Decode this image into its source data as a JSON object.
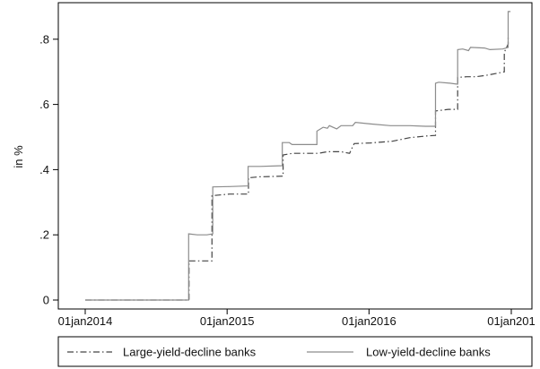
{
  "chart_data": {
    "type": "line",
    "title": "",
    "xlabel": "",
    "ylabel": "in %",
    "x_range": [
      "2014-01-01",
      "2017-01-01"
    ],
    "ylim": [
      0,
      0.88
    ],
    "x_ticks": [
      {
        "date": "2014-01-01",
        "label": "01jan2014"
      },
      {
        "date": "2015-01-01",
        "label": "01jan2015"
      },
      {
        "date": "2016-01-01",
        "label": "01jan2016"
      },
      {
        "date": "2017-01-01",
        "label": "01jan201"
      }
    ],
    "y_ticks": [
      {
        "value": 0,
        "label": "0"
      },
      {
        "value": 0.2,
        "label": ".2"
      },
      {
        "value": 0.4,
        "label": ".4"
      },
      {
        "value": 0.6,
        "label": ".6"
      },
      {
        "value": 0.8,
        "label": ".8"
      }
    ],
    "grid": false,
    "legend_position": "bottom",
    "series": [
      {
        "name": "Large-yield-decline banks",
        "style": "dash-dot",
        "color": "#444444",
        "points": [
          [
            "2014-01-01",
            0
          ],
          [
            "2014-09-25",
            0
          ],
          [
            "2014-09-25",
            0.12
          ],
          [
            "2014-10-27",
            0.12
          ],
          [
            "2014-10-27",
            0.12
          ],
          [
            "2014-11-23",
            0.12
          ],
          [
            "2014-11-23",
            0.32
          ],
          [
            "2015-01-07",
            0.325
          ],
          [
            "2015-02-25",
            0.325
          ],
          [
            "2015-02-25",
            0.375
          ],
          [
            "2015-03-26",
            0.378
          ],
          [
            "2015-05-25",
            0.38
          ],
          [
            "2015-05-25",
            0.445
          ],
          [
            "2015-06-19",
            0.45
          ],
          [
            "2015-08-24",
            0.45
          ],
          [
            "2015-09-16",
            0.455
          ],
          [
            "2015-10-21",
            0.455
          ],
          [
            "2015-11-12",
            0.45
          ],
          [
            "2015-11-24",
            0.48
          ],
          [
            "2016-01-05",
            0.482
          ],
          [
            "2016-03-01",
            0.487
          ],
          [
            "2016-04-15",
            0.498
          ],
          [
            "2016-05-26",
            0.503
          ],
          [
            "2016-06-20",
            0.505
          ],
          [
            "2016-06-20",
            0.58
          ],
          [
            "2016-07-23",
            0.585
          ],
          [
            "2016-08-16",
            0.585
          ],
          [
            "2016-08-16",
            0.683
          ],
          [
            "2016-09-08",
            0.685
          ],
          [
            "2016-10-02",
            0.685
          ],
          [
            "2016-11-02",
            0.69
          ],
          [
            "2016-12-14",
            0.7
          ],
          [
            "2016-12-14",
            0.76
          ],
          [
            "2016-12-24",
            0.785
          ],
          [
            "2016-12-24",
            0.81
          ]
        ]
      },
      {
        "name": "Low-yield-decline banks",
        "style": "solid",
        "color": "#8c8c8c",
        "points": [
          [
            "2014-01-01",
            0
          ],
          [
            "2014-09-24",
            0
          ],
          [
            "2014-09-24",
            0.203
          ],
          [
            "2014-10-16",
            0.2
          ],
          [
            "2014-11-10",
            0.2
          ],
          [
            "2014-11-25",
            0.203
          ],
          [
            "2014-11-25",
            0.347
          ],
          [
            "2015-01-07",
            0.348
          ],
          [
            "2015-02-24",
            0.35
          ],
          [
            "2015-02-24",
            0.41
          ],
          [
            "2015-03-26",
            0.41
          ],
          [
            "2015-05-23",
            0.412
          ],
          [
            "2015-05-23",
            0.483
          ],
          [
            "2015-06-10",
            0.483
          ],
          [
            "2015-06-17",
            0.477
          ],
          [
            "2015-08-20",
            0.477
          ],
          [
            "2015-08-20",
            0.518
          ],
          [
            "2015-09-05",
            0.53
          ],
          [
            "2015-09-16",
            0.527
          ],
          [
            "2015-09-21",
            0.535
          ],
          [
            "2015-10-10",
            0.525
          ],
          [
            "2015-10-21",
            0.535
          ],
          [
            "2015-11-20",
            0.535
          ],
          [
            "2015-11-27",
            0.545
          ],
          [
            "2016-01-05",
            0.54
          ],
          [
            "2016-02-25",
            0.535
          ],
          [
            "2016-04-15",
            0.535
          ],
          [
            "2016-05-25",
            0.533
          ],
          [
            "2016-06-20",
            0.533
          ],
          [
            "2016-06-20",
            0.665
          ],
          [
            "2016-06-28",
            0.668
          ],
          [
            "2016-07-27",
            0.665
          ],
          [
            "2016-08-16",
            0.662
          ],
          [
            "2016-08-16",
            0.768
          ],
          [
            "2016-08-29",
            0.77
          ],
          [
            "2016-09-13",
            0.765
          ],
          [
            "2016-09-18",
            0.775
          ],
          [
            "2016-10-24",
            0.773
          ],
          [
            "2016-11-07",
            0.768
          ],
          [
            "2016-12-10",
            0.77
          ],
          [
            "2016-12-24",
            0.775
          ],
          [
            "2016-12-24",
            0.885
          ],
          [
            "2016-12-30",
            0.885
          ]
        ]
      }
    ]
  }
}
